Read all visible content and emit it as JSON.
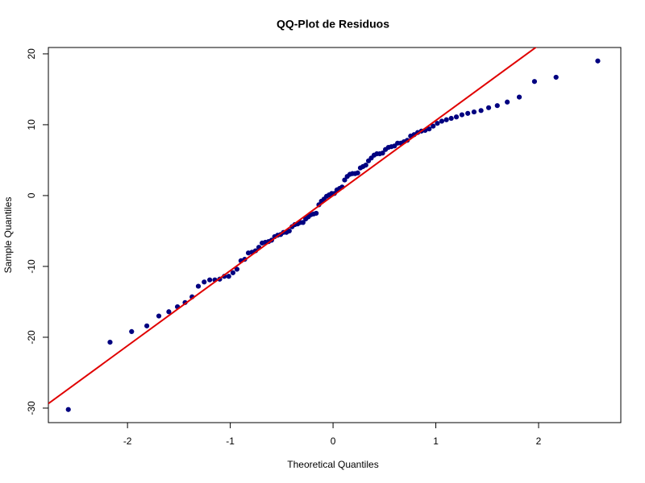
{
  "chart_data": {
    "type": "scatter",
    "title": "QQ-Plot de Residuos",
    "x_label": "Theoretical Quantiles",
    "y_label": "Sample Quantiles",
    "xlim": [
      -2.77,
      2.8
    ],
    "ylim": [
      -32.05,
      20.9
    ],
    "xticks": [
      -2,
      -1,
      0,
      1,
      2
    ],
    "yticks": [
      -30,
      -20,
      -10,
      0,
      10,
      20
    ],
    "reference_line": {
      "intercept": 0,
      "slope": 10.6,
      "color": "#e00000"
    },
    "series": [
      {
        "color": "#000080",
        "x": [
          -2.576,
          -2.17,
          -1.96,
          -1.812,
          -1.695,
          -1.598,
          -1.514,
          -1.44,
          -1.372,
          -1.311,
          -1.254,
          -1.2,
          -1.15,
          -1.103,
          -1.058,
          -1.015,
          -0.974,
          -0.935,
          -0.896,
          -0.86,
          -0.824,
          -0.789,
          -0.755,
          -0.722,
          -0.69,
          -0.659,
          -0.628,
          -0.598,
          -0.568,
          -0.539,
          -0.51,
          -0.482,
          -0.454,
          -0.426,
          -0.399,
          -0.372,
          -0.345,
          -0.319,
          -0.292,
          -0.266,
          -0.24,
          -0.215,
          -0.189,
          -0.164,
          -0.138,
          -0.113,
          -0.088,
          -0.063,
          -0.038,
          -0.013,
          0.013,
          0.038,
          0.063,
          0.088,
          0.113,
          0.138,
          0.164,
          0.189,
          0.215,
          0.24,
          0.266,
          0.292,
          0.319,
          0.345,
          0.372,
          0.399,
          0.426,
          0.454,
          0.482,
          0.51,
          0.539,
          0.568,
          0.598,
          0.628,
          0.659,
          0.69,
          0.722,
          0.755,
          0.789,
          0.824,
          0.86,
          0.896,
          0.935,
          0.974,
          1.015,
          1.058,
          1.103,
          1.15,
          1.2,
          1.254,
          1.311,
          1.372,
          1.44,
          1.514,
          1.598,
          1.695,
          1.812,
          1.96,
          2.17,
          2.576
        ],
        "values": [
          -30.2,
          -20.7,
          -19.2,
          -18.4,
          -17.0,
          -16.4,
          -15.7,
          -15.1,
          -14.3,
          -12.8,
          -12.2,
          -11.9,
          -11.9,
          -11.8,
          -11.4,
          -11.4,
          -10.9,
          -10.4,
          -9.2,
          -9.0,
          -8.1,
          -8.0,
          -7.8,
          -7.3,
          -6.7,
          -6.6,
          -6.5,
          -6.3,
          -5.8,
          -5.6,
          -5.5,
          -5.2,
          -5.2,
          -5.0,
          -4.4,
          -4.1,
          -4.0,
          -3.8,
          -3.8,
          -3.3,
          -3.0,
          -2.7,
          -2.6,
          -2.5,
          -1.3,
          -0.8,
          -0.5,
          -0.1,
          0.1,
          0.3,
          0.3,
          0.8,
          1.0,
          1.2,
          2.2,
          2.7,
          3.0,
          3.1,
          3.1,
          3.2,
          3.9,
          4.1,
          4.3,
          4.9,
          5.3,
          5.7,
          5.9,
          5.9,
          6.0,
          6.5,
          6.8,
          6.9,
          7.0,
          7.4,
          7.4,
          7.6,
          7.8,
          8.4,
          8.6,
          8.9,
          9.1,
          9.2,
          9.4,
          9.8,
          10.2,
          10.5,
          10.7,
          10.9,
          11.1,
          11.4,
          11.6,
          11.8,
          12.0,
          12.4,
          12.7,
          13.2,
          13.9,
          16.1,
          16.7,
          19.0
        ]
      }
    ]
  }
}
